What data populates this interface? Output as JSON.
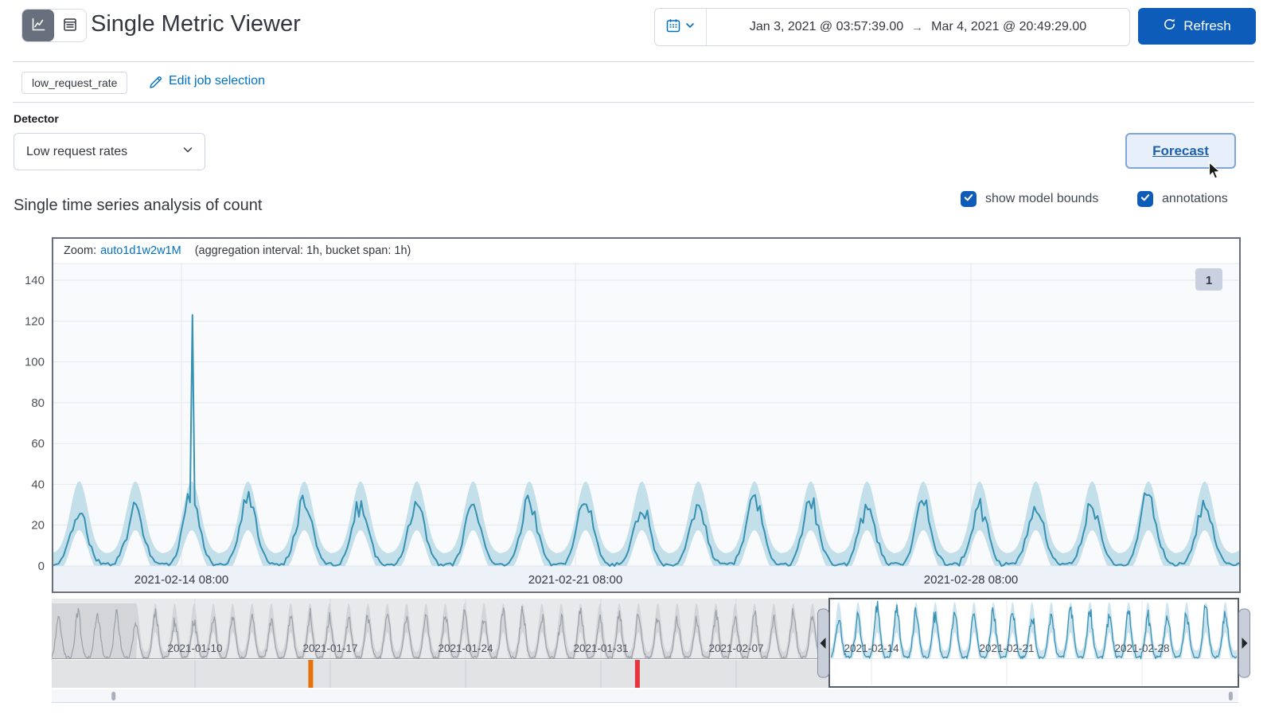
{
  "header": {
    "title": "Single Metric Viewer",
    "view_toggle": {
      "selected": "chart",
      "options": [
        "chart",
        "table"
      ]
    },
    "time_range": {
      "start": "Jan 3, 2021 @ 03:57:39.00",
      "arrow": "→",
      "end": "Mar 4, 2021 @ 20:49:29.00"
    },
    "refresh_label": "Refresh"
  },
  "job_bar": {
    "job_badge": "low_request_rate",
    "edit_link_label": "Edit job selection"
  },
  "detector": {
    "label": "Detector",
    "selected_option": "Low request rates"
  },
  "forecast_button_label": "Forecast",
  "series_section": {
    "heading": "Single time series analysis of count",
    "show_model_bounds_label": "show model bounds",
    "annotations_label": "annotations",
    "show_model_bounds_checked": true,
    "annotations_checked": true
  },
  "chart": {
    "zoom_label": "Zoom:",
    "zoom_options": [
      "auto",
      "1d",
      "1w",
      "2w",
      "1M"
    ],
    "aggregation_note": "(aggregation interval: 1h, bucket span: 1h)",
    "annotation_badge": "1"
  },
  "chart_data": {
    "type": "line",
    "description": "Hourly event count with strong daily seasonality; teal actual-value line with light-blue model bounds band; focus chart shows 2021-02-12 to 2021-03-04, context chart shows full range with brush selection",
    "y_ticks": [
      0,
      20,
      40,
      60,
      80,
      100,
      120,
      140
    ],
    "ylim": [
      0,
      148
    ],
    "focus_x_ticks": [
      "2021-02-14 08:00",
      "2021-02-21 08:00",
      "2021-02-28 08:00"
    ],
    "focus_range_days": 21.1,
    "typical_daily_peak": 30,
    "typical_night_value": 1,
    "anomaly_spike": {
      "time": "2021-02-13 13:00",
      "value": 123
    },
    "context_x_ticks": [
      "2021-01-10",
      "2021-01-17",
      "2021-01-24",
      "2021-01-31",
      "2021-02-07",
      "2021-02-14",
      "2021-02-21",
      "2021-02-28"
    ],
    "context_range": [
      "2021-01-03 03:57",
      "2021-03-04 20:49"
    ],
    "context_selection": [
      "2021-02-12",
      "2021-03-04"
    ],
    "swimlane_anomalies": [
      {
        "date": "2021-01-16",
        "severity": "major",
        "color": "#e8710a",
        "pos_days": 13.4
      },
      {
        "date": "2021-02-02",
        "severity": "critical",
        "color": "#e5353d",
        "pos_days": 30.3
      }
    ],
    "context_annotation_markers": [
      {
        "pos_days": 3.2
      },
      {
        "pos_days": 61.0
      }
    ],
    "annotations_in_view": 1
  },
  "colors": {
    "primary_blue": "#0d5cba",
    "link_blue": "#0071c2",
    "teal_line": "#3791b2",
    "bounds_band": "#c3dfea",
    "context_band": "#cde4ee",
    "severity_major": "#e8710a",
    "severity_critical": "#e5353d",
    "chart_border": "#69707d"
  }
}
